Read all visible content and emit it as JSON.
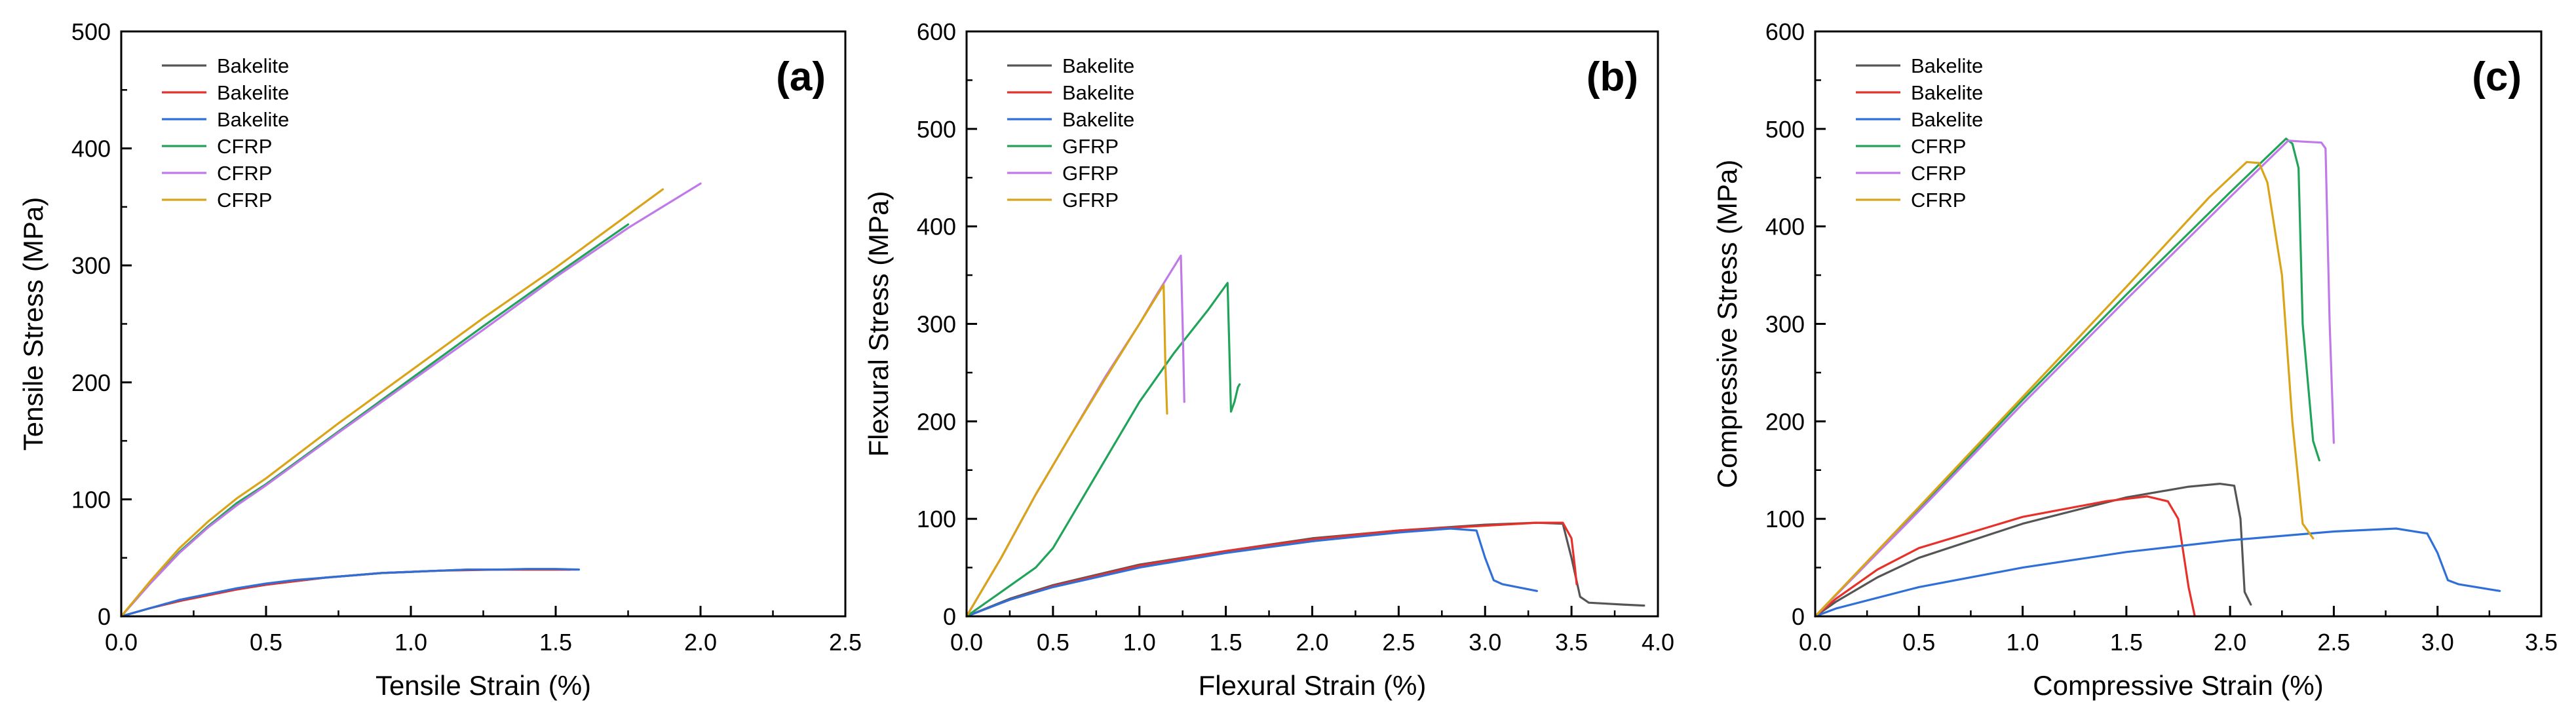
{
  "chart_data": [
    {
      "type": "line",
      "panel_label": "(a)",
      "xlabel": "Tensile Strain (%)",
      "ylabel": "Tensile Stress (MPa)",
      "xlim": [
        0,
        2.5
      ],
      "ylim": [
        0,
        500
      ],
      "xticks": [
        "0.0",
        "0.5",
        "1.0",
        "1.5",
        "2.0",
        "2.5"
      ],
      "yticks": [
        "0",
        "100",
        "200",
        "300",
        "400",
        "500"
      ],
      "legend_position": "top-left",
      "series": [
        {
          "name": "Bakelite",
          "color": "#555555",
          "x": [
            0,
            0.1,
            0.2,
            0.3,
            0.4,
            0.5,
            0.6,
            0.7,
            0.8,
            0.9,
            1.0,
            1.1,
            1.2,
            1.3,
            1.4,
            1.5,
            1.55
          ],
          "y": [
            0,
            7,
            13,
            19,
            23,
            27,
            30,
            33,
            35,
            37,
            38,
            39,
            40,
            40,
            40,
            40,
            40
          ]
        },
        {
          "name": "Bakelite",
          "color": "#e8302a",
          "x": [
            0,
            0.1,
            0.2,
            0.3,
            0.4,
            0.5,
            0.6,
            0.7,
            0.8,
            0.9,
            1.0,
            1.1,
            1.2,
            1.3,
            1.4,
            1.5,
            1.57
          ],
          "y": [
            0,
            7,
            13,
            18,
            23,
            27,
            30,
            33,
            35,
            37,
            38,
            39,
            39.5,
            40,
            40,
            40,
            40
          ]
        },
        {
          "name": "Bakelite",
          "color": "#2f6fd8",
          "x": [
            0,
            0.1,
            0.2,
            0.3,
            0.4,
            0.5,
            0.6,
            0.7,
            0.8,
            0.9,
            1.0,
            1.1,
            1.2,
            1.3,
            1.4,
            1.5,
            1.58
          ],
          "y": [
            0,
            7,
            14,
            19,
            24,
            28,
            31,
            33,
            35,
            37,
            38,
            39,
            40,
            40,
            40.5,
            40.5,
            40
          ]
        },
        {
          "name": "CFRP",
          "color": "#21a35a",
          "x": [
            0,
            0.1,
            0.2,
            0.3,
            0.4,
            0.5,
            0.75,
            1.0,
            1.25,
            1.5,
            1.75
          ],
          "y": [
            0,
            28,
            55,
            77,
            97,
            113,
            158,
            203,
            248,
            292,
            335
          ]
        },
        {
          "name": "CFRP",
          "color": "#c07ae8",
          "x": [
            0,
            0.1,
            0.2,
            0.3,
            0.4,
            0.5,
            0.75,
            1.0,
            1.25,
            1.5,
            1.75,
            2.0
          ],
          "y": [
            0,
            28,
            54,
            76,
            95,
            112,
            157,
            201,
            245,
            290,
            332,
            370
          ]
        },
        {
          "name": "CFRP",
          "color": "#d9a417",
          "x": [
            0,
            0.1,
            0.2,
            0.3,
            0.4,
            0.5,
            0.75,
            1.0,
            1.25,
            1.5,
            1.87
          ],
          "y": [
            0,
            30,
            58,
            81,
            101,
            118,
            165,
            210,
            255,
            298,
            365
          ]
        }
      ]
    },
    {
      "type": "line",
      "panel_label": "(b)",
      "xlabel": "Flexural Strain (%)",
      "ylabel": "Flexural Stress (MPa)",
      "xlim": [
        0,
        4.0
      ],
      "ylim": [
        0,
        600
      ],
      "xticks": [
        "0.0",
        "0.5",
        "1.0",
        "1.5",
        "2.0",
        "2.5",
        "3.0",
        "3.5",
        "4.0"
      ],
      "yticks": [
        "0",
        "100",
        "200",
        "300",
        "400",
        "500",
        "600"
      ],
      "legend_position": "top-left",
      "series": [
        {
          "name": "Bakelite",
          "color": "#555555",
          "x": [
            0,
            0.25,
            0.5,
            1.0,
            1.5,
            2.0,
            2.5,
            3.0,
            3.3,
            3.45,
            3.5,
            3.55,
            3.6,
            3.8,
            3.92
          ],
          "y": [
            0,
            18,
            32,
            53,
            67,
            80,
            88,
            94,
            96,
            95,
            60,
            20,
            14,
            12,
            11
          ]
        },
        {
          "name": "Bakelite",
          "color": "#e8302a",
          "x": [
            0,
            0.25,
            0.5,
            1.0,
            1.5,
            2.0,
            2.5,
            3.0,
            3.3,
            3.45,
            3.5,
            3.52,
            3.53
          ],
          "y": [
            0,
            17,
            31,
            52,
            67,
            79,
            88,
            93,
            96,
            96,
            80,
            50,
            33
          ]
        },
        {
          "name": "Bakelite",
          "color": "#2f6fd8",
          "x": [
            0,
            0.25,
            0.5,
            1.0,
            1.5,
            2.0,
            2.5,
            2.8,
            2.95,
            3.0,
            3.05,
            3.1,
            3.3
          ],
          "y": [
            0,
            17,
            30,
            50,
            65,
            77,
            86,
            90,
            88,
            60,
            37,
            33,
            26
          ]
        },
        {
          "name": "GFRP",
          "color": "#21a35a",
          "x": [
            0,
            0.2,
            0.4,
            0.5,
            0.6,
            0.8,
            1.0,
            1.2,
            1.4,
            1.51,
            1.53,
            1.55,
            1.57,
            1.58
          ],
          "y": [
            0,
            25,
            50,
            70,
            100,
            160,
            220,
            270,
            315,
            342,
            210,
            220,
            235,
            238
          ]
        },
        {
          "name": "GFRP",
          "color": "#c07ae8",
          "x": [
            0,
            0.2,
            0.4,
            0.6,
            0.8,
            1.0,
            1.1,
            1.24,
            1.25,
            1.26
          ],
          "y": [
            0,
            60,
            125,
            185,
            245,
            300,
            330,
            370,
            300,
            220
          ]
        },
        {
          "name": "GFRP",
          "color": "#d9a417",
          "x": [
            0,
            0.2,
            0.4,
            0.6,
            0.8,
            1.0,
            1.14,
            1.15,
            1.16
          ],
          "y": [
            0,
            60,
            125,
            185,
            243,
            300,
            340,
            260,
            208
          ]
        }
      ]
    },
    {
      "type": "line",
      "panel_label": "(c)",
      "xlabel": "Compressive Strain (%)",
      "ylabel": "Compressive Stress (MPa)",
      "xlim": [
        0,
        3.5
      ],
      "ylim": [
        0,
        600
      ],
      "xticks": [
        "0.0",
        "0.5",
        "1.0",
        "1.5",
        "2.0",
        "2.5",
        "3.0",
        "3.5"
      ],
      "yticks": [
        "0",
        "100",
        "200",
        "300",
        "400",
        "500",
        "600"
      ],
      "legend_position": "top-left",
      "series": [
        {
          "name": "Bakelite",
          "color": "#555555",
          "x": [
            0,
            0.1,
            0.3,
            0.5,
            1.0,
            1.5,
            1.8,
            1.95,
            2.02,
            2.05,
            2.07,
            2.1
          ],
          "y": [
            0,
            15,
            40,
            60,
            95,
            122,
            133,
            136,
            134,
            100,
            25,
            12
          ]
        },
        {
          "name": "Bakelite",
          "color": "#e8302a",
          "x": [
            0,
            0.1,
            0.3,
            0.5,
            1.0,
            1.4,
            1.6,
            1.7,
            1.75,
            1.8,
            1.83
          ],
          "y": [
            0,
            18,
            48,
            70,
            102,
            118,
            123,
            118,
            100,
            30,
            0
          ]
        },
        {
          "name": "Bakelite",
          "color": "#2f6fd8",
          "x": [
            0,
            0.1,
            0.5,
            1.0,
            1.5,
            2.0,
            2.5,
            2.8,
            2.95,
            3.0,
            3.05,
            3.1,
            3.3
          ],
          "y": [
            0,
            8,
            30,
            50,
            66,
            78,
            87,
            90,
            85,
            65,
            37,
            33,
            26
          ]
        },
        {
          "name": "CFRP",
          "color": "#21a35a",
          "x": [
            0,
            0.5,
            1.0,
            1.5,
            2.0,
            2.27,
            2.3,
            2.33,
            2.35,
            2.4,
            2.43
          ],
          "y": [
            0,
            110,
            222,
            330,
            435,
            490,
            485,
            460,
            300,
            180,
            160
          ]
        },
        {
          "name": "CFRP",
          "color": "#c07ae8",
          "x": [
            0,
            0.5,
            1.0,
            1.5,
            2.0,
            2.28,
            2.35,
            2.44,
            2.46,
            2.48,
            2.5
          ],
          "y": [
            0,
            108,
            218,
            325,
            430,
            488,
            487,
            486,
            480,
            300,
            178
          ]
        },
        {
          "name": "CFRP",
          "color": "#d9a417",
          "x": [
            0,
            0.5,
            1.0,
            1.5,
            1.9,
            2.08,
            2.14,
            2.18,
            2.25,
            2.3,
            2.35,
            2.4
          ],
          "y": [
            0,
            112,
            225,
            338,
            430,
            466,
            465,
            445,
            350,
            200,
            95,
            80
          ]
        }
      ]
    }
  ]
}
